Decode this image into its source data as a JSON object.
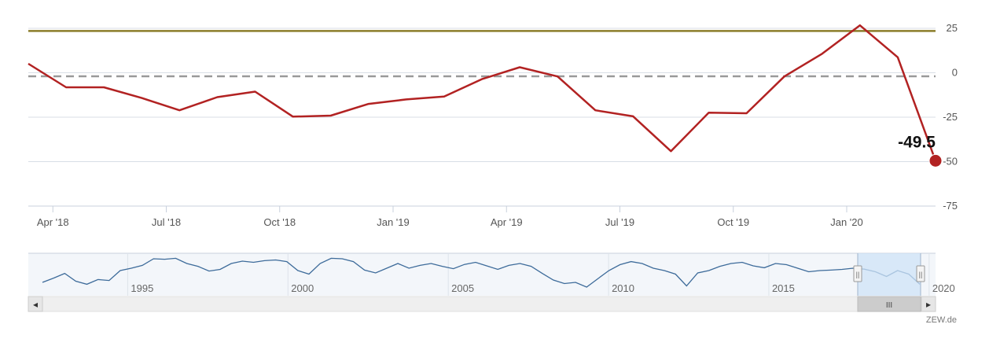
{
  "credit": "ZEW.de",
  "colors": {
    "series": "#b22222",
    "reference_line": "#8b7d2a",
    "zero_line": "#999999",
    "navigator_series": "#3d6b9a",
    "navigator_fill": "#f3f6fa",
    "navigator_mask": "#cfe3f7",
    "grid": "#d8dee6"
  },
  "chart_data": [
    {
      "type": "line",
      "title": "",
      "xlabel": "",
      "ylabel": "",
      "ylim": [
        -75,
        25
      ],
      "yticks": [
        "25",
        "0",
        "-25",
        "-50",
        "-75"
      ],
      "xticks": [
        "Apr '18",
        "Jul '18",
        "Oct '18",
        "Jan '19",
        "Apr '19",
        "Jul '19",
        "Oct '19",
        "Jan '20"
      ],
      "x": [
        "Mar '18",
        "Apr '18",
        "May '18",
        "Jun '18",
        "Jul '18",
        "Aug '18",
        "Sep '18",
        "Oct '18",
        "Nov '18",
        "Dec '18",
        "Jan '19",
        "Feb '19",
        "Mar '19",
        "Apr '19",
        "May '19",
        "Jun '19",
        "Jul '19",
        "Aug '19",
        "Sep '19",
        "Oct '19",
        "Nov '19",
        "Dec '19",
        "Jan '20",
        "Feb '20",
        "Mar '20"
      ],
      "series": [
        {
          "values": [
            5.1,
            -8.2,
            -8.2,
            -14.2,
            -21.1,
            -13.7,
            -10.6,
            -24.7,
            -24.1,
            -17.5,
            -15.0,
            -13.4,
            -3.6,
            3.1,
            -2.1,
            -21.1,
            -24.5,
            -44.1,
            -22.5,
            -22.8,
            -2.1,
            10.7,
            26.7,
            8.7,
            -49.5
          ]
        }
      ],
      "reference_lines": [
        {
          "value": 23.5,
          "style": "solid"
        },
        {
          "value": -2,
          "style": "dashed"
        }
      ],
      "last_value_label": "-49.5",
      "grid": true,
      "legend": "none"
    },
    {
      "type": "area",
      "role": "navigator",
      "xticks": [
        "1995",
        "2000",
        "2005",
        "2010",
        "2015",
        "2020"
      ],
      "x_start": 1991.9,
      "x_end": 2020.2,
      "selected_range": [
        "Mar '18",
        "Mar '20"
      ],
      "series": [
        {
          "values": [
            -30,
            -12,
            8,
            -25,
            -38,
            -18,
            -22,
            20,
            30,
            42,
            70,
            68,
            72,
            50,
            38,
            18,
            25,
            50,
            60,
            55,
            62,
            65,
            58,
            20,
            5,
            50,
            72,
            70,
            58,
            22,
            10,
            30,
            50,
            30,
            42,
            50,
            38,
            28,
            46,
            55,
            40,
            25,
            42,
            50,
            38,
            8,
            -20,
            -35,
            -30,
            -50,
            -15,
            20,
            45,
            58,
            50,
            30,
            20,
            5,
            -45,
            10,
            20,
            38,
            50,
            55,
            40,
            32,
            50,
            45,
            30,
            15,
            20,
            22,
            25,
            30,
            26,
            15,
            -5,
            20,
            5,
            -38
          ]
        }
      ]
    }
  ],
  "scroll": {
    "left_arrow": "◂",
    "right_arrow": "▸",
    "thumb_grip": "III",
    "handle_grip": "||"
  }
}
